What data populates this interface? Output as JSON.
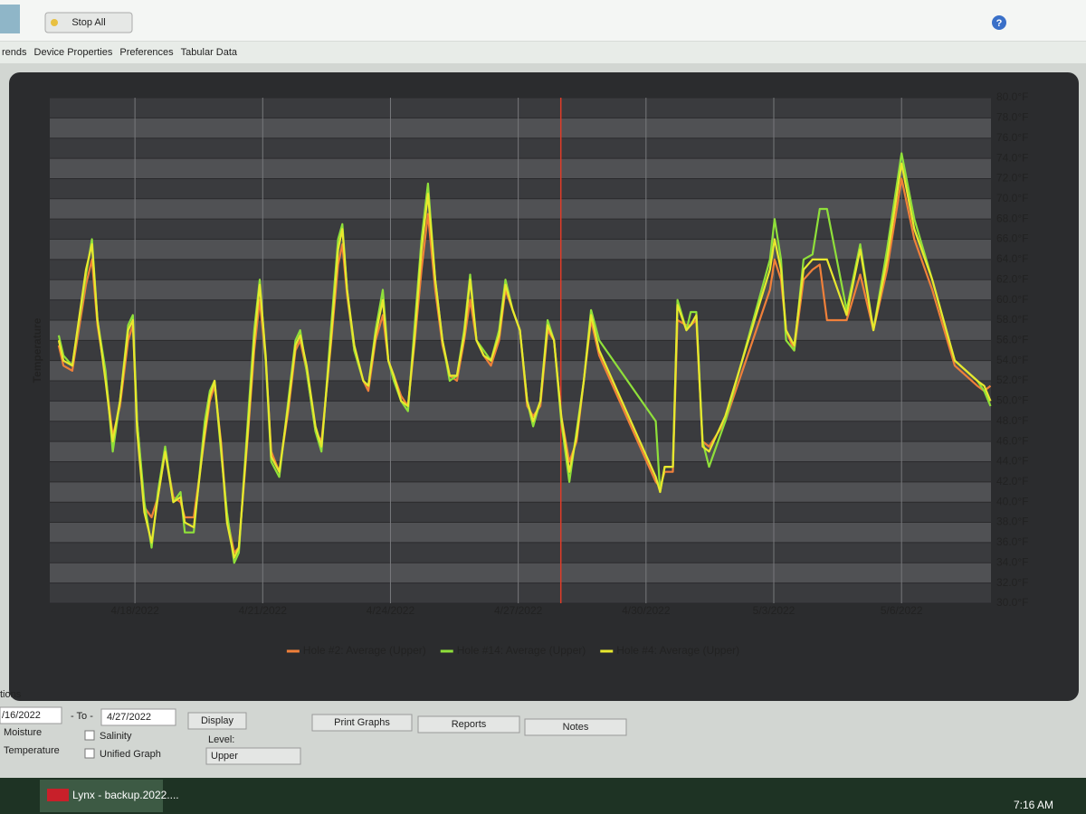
{
  "toolbar": {
    "stop_all": "Stop All"
  },
  "tabs": [
    "rends",
    "Device Properties",
    "Preferences",
    "Tabular Data"
  ],
  "chart_data": {
    "type": "line",
    "y_label": "Temperature",
    "x": [
      0.21,
      0.32,
      0.53,
      0.85,
      0.99,
      1.12,
      1.31,
      1.48,
      1.65,
      1.84,
      1.95,
      2.05,
      2.22,
      2.39,
      2.54,
      2.71,
      2.9,
      3.07,
      3.17,
      3.38,
      3.64,
      3.76,
      3.87,
      4.02,
      4.16,
      4.33,
      4.44,
      4.65,
      4.8,
      4.93,
      5.07,
      5.2,
      5.39,
      5.6,
      5.77,
      5.88,
      6.03,
      6.24,
      6.38,
      6.6,
      6.77,
      6.87,
      6.98,
      7.15,
      7.36,
      7.48,
      7.65,
      7.82,
      7.95,
      8.08,
      8.25,
      8.41,
      8.56,
      8.73,
      8.88,
      9.05,
      9.22,
      9.39,
      9.56,
      9.73,
      9.87,
      10.02,
      10.19,
      10.36,
      10.55,
      10.7,
      10.87,
      11.04,
      11.21,
      11.35,
      11.52,
      11.69,
      11.84,
      12.01,
      12.2,
      12.37,
      12.54,
      12.71,
      12.9,
      14.23,
      14.33,
      14.44,
      14.63,
      14.74,
      14.95,
      15.05,
      15.18,
      15.33,
      15.48,
      15.86,
      16.91,
      17.02,
      17.17,
      17.29,
      17.48,
      17.7,
      17.91,
      18.08,
      18.25,
      18.71,
      19.03,
      19.34,
      19.66,
      20.0,
      20.3,
      20.72,
      21.25,
      21.78,
      21.94,
      22.09
    ],
    "series": [
      {
        "name": "Hole #2: Average (Upper)",
        "color": "#f0803a",
        "values": [
          55.5,
          53.5,
          53,
          61.5,
          64,
          57.5,
          52.5,
          46.5,
          49.5,
          56,
          57.5,
          48,
          39.5,
          38.5,
          40.5,
          45,
          40.5,
          40,
          38.5,
          38.5,
          46.5,
          50,
          51.5,
          46,
          38.5,
          35,
          35.5,
          46.5,
          55,
          60,
          54,
          45,
          43,
          49,
          55,
          56,
          53,
          47,
          46,
          55.5,
          63.5,
          65.5,
          60.5,
          55,
          52,
          51,
          56,
          58.5,
          54,
          52.5,
          50.5,
          49.5,
          55.5,
          63,
          68.5,
          61,
          55.5,
          52.5,
          52,
          56,
          60,
          56,
          54.5,
          53.5,
          56,
          61,
          59,
          57,
          49.5,
          48.5,
          49.5,
          57,
          56,
          48.5,
          44,
          46,
          52,
          58,
          54.5,
          42,
          41.5,
          43,
          43,
          58,
          57.5,
          57.5,
          58,
          46,
          45.5,
          48,
          61,
          64,
          62,
          57,
          55,
          62,
          63,
          63.5,
          58,
          58,
          62.5,
          57,
          63,
          72,
          66,
          61,
          53.5,
          51.5,
          51,
          51.5
        ]
      },
      {
        "name": "Hole #14: Average (Upper)",
        "color": "#8fe03a",
        "values": [
          56.5,
          54.5,
          53.5,
          62.5,
          66,
          58,
          53,
          45,
          50,
          57.5,
          58.5,
          48,
          40,
          35.5,
          41,
          45.5,
          40,
          41,
          37,
          37,
          48,
          51,
          52,
          45,
          39,
          34,
          35,
          48,
          57,
          62,
          54,
          44,
          42.5,
          50,
          56,
          57,
          53,
          47,
          45,
          57,
          66,
          67.5,
          61,
          55,
          52,
          51.5,
          57,
          61,
          54,
          52,
          50,
          49,
          57,
          66,
          71.5,
          62,
          56,
          52,
          52.5,
          57,
          62.5,
          56,
          55,
          54,
          57,
          62,
          59,
          57,
          50,
          47.5,
          50,
          58,
          56,
          48,
          42,
          47,
          52,
          59,
          56,
          48,
          41,
          43.5,
          43.5,
          60,
          57,
          58.8,
          58.8,
          46,
          43.5,
          48,
          64,
          68,
          64,
          56,
          55,
          64,
          64.5,
          69,
          69,
          59,
          65.5,
          57,
          65,
          74.5,
          68,
          62,
          54,
          52,
          51,
          49.5
        ]
      },
      {
        "name": "Hole #4: Average (Upper)",
        "color": "#e8e82e",
        "values": [
          56,
          54,
          53.5,
          63,
          65.5,
          58,
          52,
          46,
          50,
          57,
          58,
          47,
          39,
          36,
          40.5,
          45,
          40,
          40.5,
          38,
          37.5,
          47,
          50.5,
          52,
          45.5,
          38,
          34.5,
          35.5,
          47,
          56,
          61.5,
          54.5,
          44.5,
          43,
          49.5,
          55.5,
          56.5,
          53.5,
          47.5,
          45.5,
          56,
          65,
          67,
          61,
          55.5,
          52,
          51.5,
          56.5,
          60,
          54,
          52.5,
          50,
          49.5,
          56,
          65,
          70.5,
          62,
          56,
          52.5,
          52.5,
          56.5,
          62,
          56,
          54.5,
          54,
          56.5,
          61.5,
          59,
          57,
          50,
          48,
          50,
          57.5,
          56,
          48.5,
          43,
          46.5,
          52,
          58.5,
          55,
          42.5,
          41,
          43.5,
          43.5,
          59.5,
          57,
          57.5,
          58.5,
          45.5,
          45,
          48.5,
          63,
          66,
          63,
          57,
          55.5,
          63,
          64,
          64,
          64,
          58.5,
          65,
          57,
          64,
          73.5,
          67,
          62,
          54,
          52,
          51.5,
          50
        ]
      }
    ],
    "xlim": [
      0,
      22.1
    ],
    "xticks": [
      {
        "value": 2,
        "label": "4/18/2022"
      },
      {
        "value": 5,
        "label": "4/21/2022"
      },
      {
        "value": 8,
        "label": "4/24/2022"
      },
      {
        "value": 11,
        "label": "4/27/2022"
      },
      {
        "value": 14,
        "label": "4/30/2022"
      },
      {
        "value": 17,
        "label": "5/3/2022"
      },
      {
        "value": 20,
        "label": "5/6/2022"
      }
    ],
    "ylim": [
      30,
      80
    ],
    "yticks": [
      {
        "value": 30,
        "label": "30.0°F"
      },
      {
        "value": 32,
        "label": "32.0°F"
      },
      {
        "value": 34,
        "label": "34.0°F"
      },
      {
        "value": 36,
        "label": "36.0°F"
      },
      {
        "value": 38,
        "label": "38.0°F"
      },
      {
        "value": 40,
        "label": "40.0°F"
      },
      {
        "value": 42,
        "label": "42.0°F"
      },
      {
        "value": 44,
        "label": "44.0°F"
      },
      {
        "value": 46,
        "label": "46.0°F"
      },
      {
        "value": 48,
        "label": "48.0°F"
      },
      {
        "value": 50,
        "label": "50.0°F"
      },
      {
        "value": 52,
        "label": "52.0°F"
      },
      {
        "value": 54,
        "label": "54.0°F"
      },
      {
        "value": 56,
        "label": "56.0°F"
      },
      {
        "value": 58,
        "label": "58.0°F"
      },
      {
        "value": 60,
        "label": "60.0°F"
      },
      {
        "value": 62,
        "label": "62.0°F"
      },
      {
        "value": 64,
        "label": "64.0°F"
      },
      {
        "value": 66,
        "label": "66.0°F"
      },
      {
        "value": 68,
        "label": "68.0°F"
      },
      {
        "value": 70,
        "label": "70.0°F"
      },
      {
        "value": 72,
        "label": "72.0°F"
      },
      {
        "value": 74,
        "label": "74.0°F"
      },
      {
        "value": 76,
        "label": "76.0°F"
      },
      {
        "value": 78,
        "label": "78.0°F"
      },
      {
        "value": 80,
        "label": "80.0°F"
      }
    ],
    "grid": true,
    "legend": "bottom",
    "reference_line": {
      "x": 12,
      "color": "#e03c28"
    }
  },
  "controls": {
    "options_label": "tions",
    "from_date": "/16/2022",
    "to_label": "- To -",
    "to_date": "4/27/2022",
    "display": "Display",
    "print_graphs": "Print Graphs",
    "reports": "Reports",
    "notes": "Notes",
    "moisture": "Moisture",
    "temperature": "Temperature",
    "salinity": "Salinity",
    "unified_graph": "Unified Graph",
    "level_label": "Level:",
    "level_value": "Upper"
  },
  "taskbar": {
    "app": "Lynx - backup.2022....",
    "time": "7:16 AM"
  }
}
